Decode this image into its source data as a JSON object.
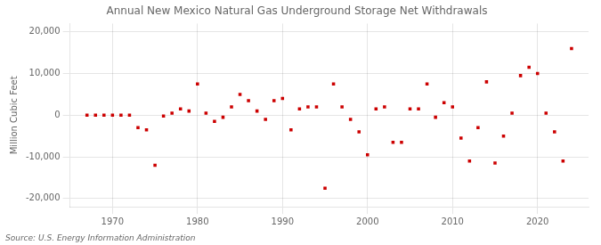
{
  "chart_data": {
    "type": "scatter",
    "title": "Annual New Mexico Natural Gas Underground Storage Net Withdrawals",
    "ylabel": "Million Cubic Feet",
    "annotations": [
      "Source: U.S. Energy Information Administration"
    ],
    "color": "#cc0000",
    "marker": "square",
    "grid": true,
    "xlim": [
      1965,
      2026
    ],
    "ylim": [
      -22000,
      22000
    ],
    "xticks": [
      1970,
      1980,
      1990,
      2000,
      2010,
      2020
    ],
    "yticks": [
      {
        "value": -20000,
        "label": "-20,000"
      },
      {
        "value": -10000,
        "label": "-10,000"
      },
      0,
      {
        "value": 10000,
        "label": "10,000"
      },
      {
        "value": 20000,
        "label": "20,000"
      }
    ],
    "x": [
      1967,
      1968,
      1969,
      1970,
      1971,
      1972,
      1973,
      1974,
      1975,
      1976,
      1977,
      1978,
      1979,
      1980,
      1981,
      1982,
      1983,
      1984,
      1985,
      1986,
      1987,
      1988,
      1989,
      1990,
      1991,
      1992,
      1993,
      1994,
      1995,
      1996,
      1997,
      1998,
      1999,
      2000,
      2001,
      2002,
      2003,
      2004,
      2005,
      2006,
      2007,
      2008,
      2009,
      2010,
      2011,
      2012,
      2013,
      2014,
      2015,
      2016,
      2017,
      2018,
      2019,
      2020,
      2021,
      2022,
      2023,
      2024
    ],
    "values": [
      0,
      0,
      0,
      0,
      0,
      0,
      -3000,
      -3500,
      -12000,
      -200,
      500,
      1500,
      1000,
      7500,
      500,
      -1500,
      -500,
      2000,
      5000,
      3500,
      1000,
      -1000,
      3500,
      4000,
      -3500,
      1500,
      2000,
      2000,
      -17500,
      7500,
      2000,
      -1000,
      -4000,
      -9500,
      1500,
      2000,
      -6500,
      -6500,
      1500,
      1500,
      7500,
      -500,
      3000,
      2000,
      -5500,
      -11000,
      -3000,
      8000,
      -11500,
      -5000,
      500,
      9500,
      11500,
      10000,
      500,
      -4000,
      -11000,
      16000
    ]
  }
}
